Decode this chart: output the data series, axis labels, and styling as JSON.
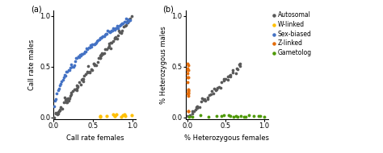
{
  "panel_a": {
    "xlabel": "Call rate females",
    "ylabel": "Call rate males",
    "xlim": [
      0,
      1.05
    ],
    "ylim": [
      -0.02,
      1.05
    ],
    "xticks": [
      0,
      0.5,
      1
    ],
    "yticks": [
      0,
      0.5,
      1
    ],
    "label": "(a)"
  },
  "panel_b": {
    "xlabel": "% Heterozygous females",
    "ylabel": "% Heterozygous males",
    "xlim": [
      -0.02,
      1.05
    ],
    "ylim": [
      -0.02,
      1.05
    ],
    "xticks": [
      0,
      0.5,
      1
    ],
    "yticks": [
      0,
      0.5,
      1
    ],
    "label": "(b)"
  },
  "legend": {
    "autosomal_color": "#595959",
    "w_linked_color": "#FFC000",
    "sex_biased_color": "#4472C4",
    "z_linked_color": "#E36C09",
    "gametolog_color": "#4E9A06",
    "labels": [
      "Autosomal",
      "W-linked",
      "Sex-biased",
      "Z-linked",
      "Gametolog"
    ]
  },
  "dot_size": 7,
  "background_color": "#ffffff"
}
